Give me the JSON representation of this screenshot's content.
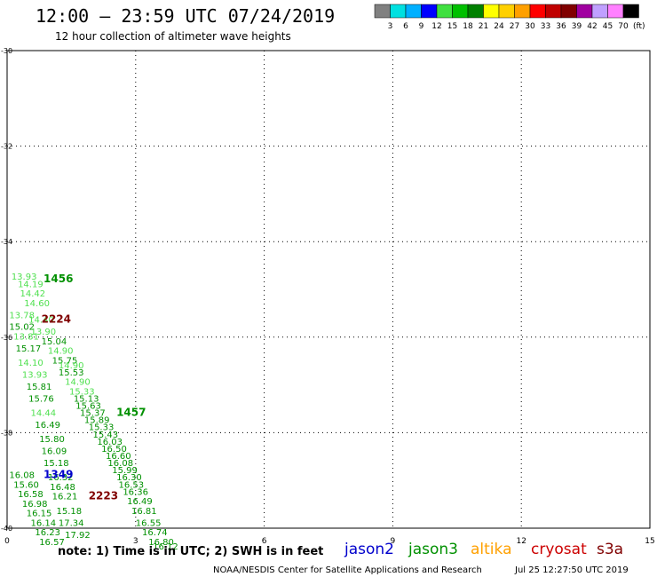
{
  "header": {
    "title": "12:00 – 23:59 UTC 07/24/2019",
    "subtitle": "12 hour collection of altimeter wave heights"
  },
  "color_scale": {
    "labels": [
      "3",
      "6",
      "9",
      "12",
      "15",
      "18",
      "21",
      "24",
      "27",
      "30",
      "33",
      "36",
      "39",
      "42",
      "45",
      "70"
    ],
    "unit": "(ft)",
    "colors": [
      "#808080",
      "#00e0e0",
      "#00b0ff",
      "#0000ff",
      "#40e040",
      "#00c000",
      "#008000",
      "#ffff00",
      "#ffd000",
      "#ffa000",
      "#ff0000",
      "#c00000",
      "#800000",
      "#a000a0",
      "#c0a0ff",
      "#ff80ff",
      "#000000"
    ]
  },
  "footer": {
    "note": "note:  1) Time is in UTC;  2) SWH is in feet",
    "credit": "NOAA/NESDIS Center for Satellite Applications and Research",
    "timestamp": "Jul 25 12:27:50 UTC 2019"
  },
  "chart_data": {
    "type": "scatter",
    "xlim": [
      0,
      15
    ],
    "ylim": [
      -40,
      -30
    ],
    "xticks": [
      "0",
      "3",
      "6",
      "9",
      "12",
      "15"
    ],
    "yticks": [
      "-30",
      "-32",
      "-34",
      "-36",
      "-38",
      "-40"
    ],
    "grid": true,
    "legend": [
      {
        "name": "jason2",
        "color": "#0000cc"
      },
      {
        "name": "jason3",
        "color": "#009000"
      },
      {
        "name": "altika",
        "color": "#ffa000"
      },
      {
        "name": "cryosat",
        "color": "#cc0000"
      },
      {
        "name": "s3a",
        "color": "#800000"
      }
    ],
    "points": [
      {
        "x": 0.1,
        "y": -34.8,
        "label": "13.93",
        "color": "#50e050"
      },
      {
        "x": 0.25,
        "y": -34.95,
        "label": "14.19",
        "color": "#50e050"
      },
      {
        "x": 0.3,
        "y": -35.15,
        "label": "14.42",
        "color": "#50e050"
      },
      {
        "x": 0.4,
        "y": -35.35,
        "label": "14.60",
        "color": "#50e050"
      },
      {
        "x": 0.05,
        "y": -35.6,
        "label": "13.78",
        "color": "#50e050"
      },
      {
        "x": 0.5,
        "y": -35.7,
        "label": "14.40",
        "color": "#50e050"
      },
      {
        "x": 0.05,
        "y": -35.85,
        "label": "15.02",
        "color": "#009000"
      },
      {
        "x": 0.55,
        "y": -35.95,
        "label": "13.90",
        "color": "#50e050"
      },
      {
        "x": 0.15,
        "y": -36.05,
        "label": "13.81",
        "color": "#50e050"
      },
      {
        "x": 0.8,
        "y": -36.15,
        "label": "15.04",
        "color": "#009000"
      },
      {
        "x": 0.2,
        "y": -36.3,
        "label": "15.17",
        "color": "#009000"
      },
      {
        "x": 0.95,
        "y": -36.35,
        "label": "14.90",
        "color": "#50e050"
      },
      {
        "x": 0.25,
        "y": -36.6,
        "label": "14.10",
        "color": "#50e050"
      },
      {
        "x": 1.05,
        "y": -36.55,
        "label": "15.75",
        "color": "#009000"
      },
      {
        "x": 1.2,
        "y": -36.65,
        "label": "14.90",
        "color": "#50e050"
      },
      {
        "x": 1.2,
        "y": -36.8,
        "label": "15.53",
        "color": "#009000"
      },
      {
        "x": 0.35,
        "y": -36.85,
        "label": "13.93",
        "color": "#50e050"
      },
      {
        "x": 1.35,
        "y": -37.0,
        "label": "14.90",
        "color": "#50e050"
      },
      {
        "x": 0.45,
        "y": -37.1,
        "label": "15.81",
        "color": "#009000"
      },
      {
        "x": 1.45,
        "y": -37.2,
        "label": "15.33",
        "color": "#50e050"
      },
      {
        "x": 0.5,
        "y": -37.35,
        "label": "15.76",
        "color": "#009000"
      },
      {
        "x": 1.55,
        "y": -37.35,
        "label": "15.13",
        "color": "#009000"
      },
      {
        "x": 1.6,
        "y": -37.5,
        "label": "15.63",
        "color": "#009000"
      },
      {
        "x": 0.55,
        "y": -37.65,
        "label": "14.44",
        "color": "#50e050"
      },
      {
        "x": 1.7,
        "y": -37.65,
        "label": "15.37",
        "color": "#009000"
      },
      {
        "x": 1.8,
        "y": -37.8,
        "label": "15.89",
        "color": "#009000"
      },
      {
        "x": 0.65,
        "y": -37.9,
        "label": "16.49",
        "color": "#009000"
      },
      {
        "x": 1.9,
        "y": -37.95,
        "label": "15.33",
        "color": "#009000"
      },
      {
        "x": 2.0,
        "y": -38.1,
        "label": "15.43",
        "color": "#009000"
      },
      {
        "x": 0.75,
        "y": -38.2,
        "label": "15.80",
        "color": "#009000"
      },
      {
        "x": 2.1,
        "y": -38.25,
        "label": "16.03",
        "color": "#009000"
      },
      {
        "x": 2.2,
        "y": -38.4,
        "label": "16.50",
        "color": "#009000"
      },
      {
        "x": 0.8,
        "y": -38.45,
        "label": "16.09",
        "color": "#009000"
      },
      {
        "x": 2.3,
        "y": -38.55,
        "label": "16.60",
        "color": "#009000"
      },
      {
        "x": 0.85,
        "y": -38.7,
        "label": "15.18",
        "color": "#009000"
      },
      {
        "x": 2.35,
        "y": -38.7,
        "label": "16.08",
        "color": "#009000"
      },
      {
        "x": 2.45,
        "y": -38.85,
        "label": "15.99",
        "color": "#009000"
      },
      {
        "x": 0.05,
        "y": -38.95,
        "label": "16.08",
        "color": "#009000"
      },
      {
        "x": 0.95,
        "y": -39.0,
        "label": "16.32",
        "color": "#009000"
      },
      {
        "x": 2.55,
        "y": -39.0,
        "label": "16.30",
        "color": "#009000"
      },
      {
        "x": 0.15,
        "y": -39.15,
        "label": "15.60",
        "color": "#009000"
      },
      {
        "x": 1.0,
        "y": -39.2,
        "label": "16.48",
        "color": "#009000"
      },
      {
        "x": 2.6,
        "y": -39.15,
        "label": "16.53",
        "color": "#009000"
      },
      {
        "x": 0.25,
        "y": -39.35,
        "label": "16.58",
        "color": "#009000"
      },
      {
        "x": 1.05,
        "y": -39.4,
        "label": "16.21",
        "color": "#009000"
      },
      {
        "x": 2.7,
        "y": -39.3,
        "label": "16.36",
        "color": "#009000"
      },
      {
        "x": 0.35,
        "y": -39.55,
        "label": "16.98",
        "color": "#009000"
      },
      {
        "x": 2.8,
        "y": -39.5,
        "label": "16.49",
        "color": "#009000"
      },
      {
        "x": 0.45,
        "y": -39.75,
        "label": "16.15",
        "color": "#009000"
      },
      {
        "x": 1.15,
        "y": -39.7,
        "label": "15.18",
        "color": "#009000"
      },
      {
        "x": 2.9,
        "y": -39.7,
        "label": "16.81",
        "color": "#009000"
      },
      {
        "x": 0.55,
        "y": -39.95,
        "label": "16.14",
        "color": "#009000"
      },
      {
        "x": 1.2,
        "y": -39.95,
        "label": "17.34",
        "color": "#009000"
      },
      {
        "x": 3.0,
        "y": -39.95,
        "label": "16.55",
        "color": "#009000"
      },
      {
        "x": 0.65,
        "y": -40.15,
        "label": "16.23",
        "color": "#009000"
      },
      {
        "x": 1.35,
        "y": -40.2,
        "label": "17.92",
        "color": "#009000"
      },
      {
        "x": 3.15,
        "y": -40.15,
        "label": "16.74",
        "color": "#009000"
      },
      {
        "x": 0.75,
        "y": -40.35,
        "label": "16.57",
        "color": "#009000"
      },
      {
        "x": 3.3,
        "y": -40.35,
        "label": "16.80",
        "color": "#009000"
      },
      {
        "x": 3.4,
        "y": -40.45,
        "label": "16.12",
        "color": "#009000"
      }
    ],
    "pass_labels": [
      {
        "x": 0.85,
        "y": -34.85,
        "label": "1456",
        "color": "#009000"
      },
      {
        "x": 0.8,
        "y": -35.7,
        "label": "2224",
        "color": "#800000"
      },
      {
        "x": 2.55,
        "y": -37.65,
        "label": "1457",
        "color": "#009000"
      },
      {
        "x": 0.85,
        "y": -38.95,
        "label": "1349",
        "color": "#0000cc"
      },
      {
        "x": 1.9,
        "y": -39.4,
        "label": "2223",
        "color": "#800000"
      }
    ]
  }
}
